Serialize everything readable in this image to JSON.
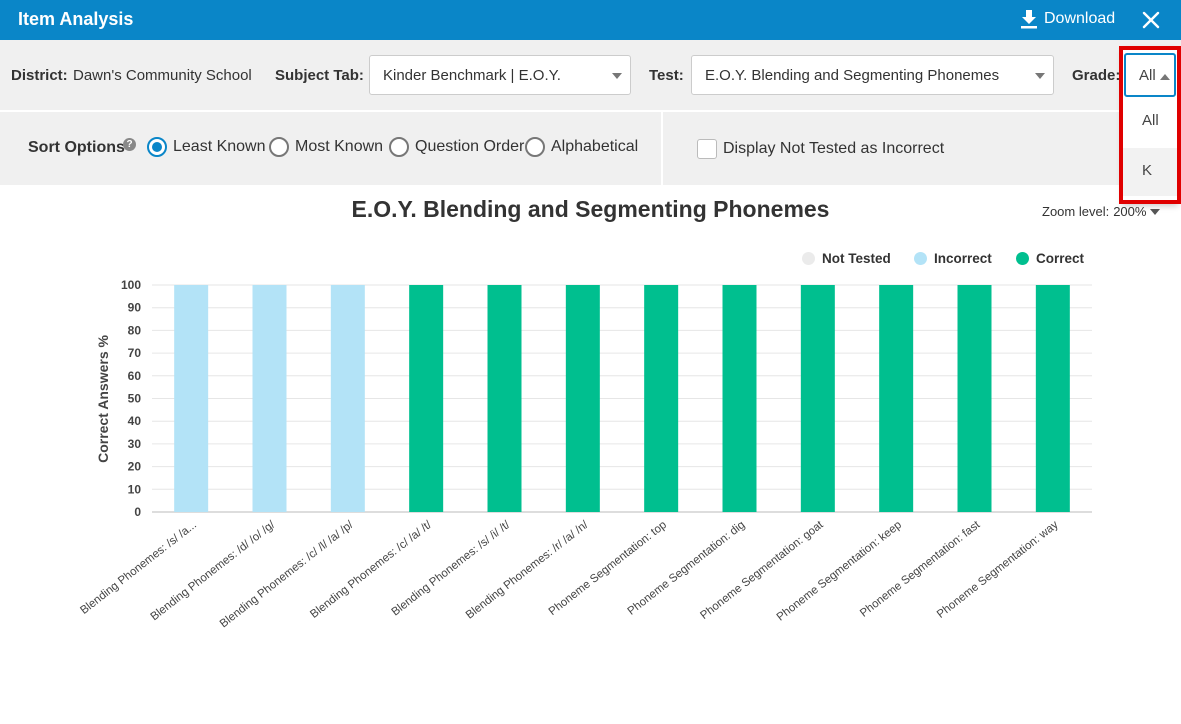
{
  "window": {
    "title": "Item Analysis",
    "download_label": "Download"
  },
  "filters": {
    "district_label": "District:",
    "district_value": "Dawn's Community School",
    "subject_label": "Subject Tab:",
    "subject_value": "Kinder Benchmark | E.O.Y.",
    "test_label": "Test:",
    "test_value": "E.O.Y. Blending and Segmenting Phonemes",
    "grade_label": "Grade:",
    "grade_value": "All",
    "grade_options": [
      "All",
      "K"
    ]
  },
  "sort": {
    "label": "Sort Options",
    "options": [
      "Least Known",
      "Most Known",
      "Question Order",
      "Alphabetical"
    ],
    "selected": "Least Known",
    "display_not_tested_label": "Display Not Tested as Incorrect"
  },
  "zoom": {
    "label": "Zoom level:",
    "value": "200%"
  },
  "colors": {
    "header": "#0a86c8",
    "not_tested": "#ebebeb",
    "incorrect": "#b3e3f7",
    "correct": "#00bf8f",
    "highlight": "#e00000"
  },
  "chart_data": {
    "type": "bar",
    "stacked": true,
    "title": "E.O.Y. Blending and Segmenting Phonemes",
    "ylabel": "Correct Answers %",
    "xlabel": "",
    "ylim": [
      0,
      100
    ],
    "yticks": [
      0,
      10,
      20,
      30,
      40,
      50,
      60,
      70,
      80,
      90,
      100
    ],
    "grid": true,
    "legend_position": "top-right",
    "categories": [
      "Blending Phonemes: /s/ /a...",
      "Blending Phonemes: /d/ /o/ /g/",
      "Blending Phonemes: /c/ /l/ /a/ /p/",
      "Blending Phonemes: /c/ /a/ /t/",
      "Blending Phonemes: /s/ /i/ /t/",
      "Blending Phonemes: /r/ /a/ /n/",
      "Phoneme Segmentation: top",
      "Phoneme Segmentation: dig",
      "Phoneme Segmentation: goat",
      "Phoneme Segmentation: keep",
      "Phoneme Segmentation: fast",
      "Phoneme Segmentation: way"
    ],
    "series": [
      {
        "name": "Not Tested",
        "color": "#ebebeb",
        "values": [
          0,
          0,
          0,
          0,
          0,
          0,
          0,
          0,
          0,
          0,
          0,
          0
        ]
      },
      {
        "name": "Incorrect",
        "color": "#b3e3f7",
        "values": [
          100,
          100,
          100,
          0,
          0,
          0,
          0,
          0,
          0,
          0,
          0,
          0
        ]
      },
      {
        "name": "Correct",
        "color": "#00bf8f",
        "values": [
          0,
          0,
          0,
          100,
          100,
          100,
          100,
          100,
          100,
          100,
          100,
          100
        ]
      }
    ]
  }
}
